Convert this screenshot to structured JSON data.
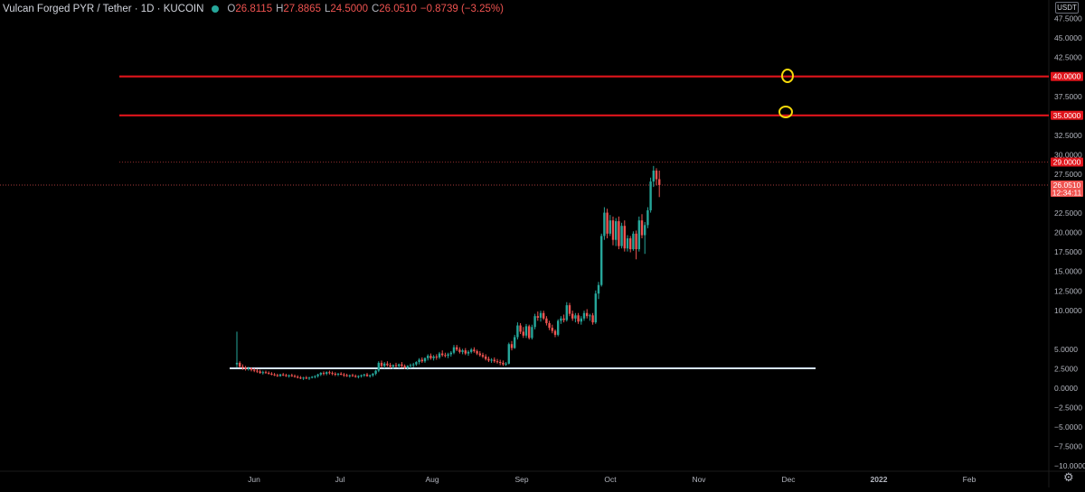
{
  "header": {
    "symbol": "Vulcan Forged PYR / Tether · 1D · KUCOIN",
    "ohlc": [
      {
        "label": "O",
        "value": "26.8115"
      },
      {
        "label": "H",
        "value": "27.8865"
      },
      {
        "label": "L",
        "value": "24.5000"
      },
      {
        "label": "C",
        "value": "26.0510"
      },
      {
        "label": "",
        "value": "−0.8739 (−3.25%)"
      }
    ]
  },
  "currency": "USDT",
  "settings_icon": "gear-icon",
  "colors": {
    "background": "#000000",
    "up": "#26a69a",
    "down": "#ef5350",
    "resistance": "#e0141b",
    "support": "#d6e4ff",
    "circle": "#f5d90a",
    "axis_text": "#b2b5be"
  },
  "price_axis": {
    "ticks": [
      "47.5000",
      "45.0000",
      "42.5000",
      "40.0000",
      "37.5000",
      "35.0000",
      "32.5000",
      "30.0000",
      "27.5000",
      "25.0000",
      "22.5000",
      "20.0000",
      "17.5000",
      "15.0000",
      "12.5000",
      "10.0000",
      "5.0000",
      "2.5000",
      "0.0000",
      "−2.5000",
      "−5.0000",
      "−7.5000",
      "−10.0000"
    ],
    "tick_values": [
      47.5,
      45,
      42.5,
      40,
      37.5,
      35,
      32.5,
      30,
      27.5,
      25,
      22.5,
      20,
      17.5,
      15,
      12.5,
      10,
      5,
      2.5,
      0,
      -2.5,
      -5,
      -7.5,
      -10
    ]
  },
  "price_labels": [
    {
      "text": "40.0000",
      "value": 40,
      "color": "#e0141b"
    },
    {
      "text": "35.0000",
      "value": 35,
      "color": "#e0141b"
    },
    {
      "text": "29.0000",
      "value": 29,
      "color": "#e0141b"
    },
    {
      "text": "26.0510",
      "value": 26.051,
      "color": "#ef5350",
      "sub": "12:34:11"
    }
  ],
  "time_axis": {
    "labels": [
      "Jun",
      "Jul",
      "Aug",
      "Sep",
      "Oct",
      "Nov",
      "Dec",
      "2022",
      "Feb"
    ],
    "bold": [
      "2022"
    ]
  },
  "drawings": {
    "resistance_levels": [
      40,
      35
    ],
    "dotted_level": 29,
    "last_price": 26.051,
    "support_level": 2.5
  },
  "chart_data": {
    "type": "candlestick",
    "start_date": "2021-05-26",
    "candles": [
      [
        3.0,
        7.2,
        2.6,
        3.2
      ],
      [
        3.2,
        3.4,
        2.6,
        2.7
      ],
      [
        2.7,
        3.0,
        2.3,
        2.6
      ],
      [
        2.6,
        2.8,
        2.2,
        2.4
      ],
      [
        2.4,
        2.7,
        2.2,
        2.5
      ],
      [
        2.5,
        2.6,
        2.1,
        2.3
      ],
      [
        2.3,
        2.5,
        2.0,
        2.2
      ],
      [
        2.2,
        2.4,
        1.9,
        2.1
      ],
      [
        2.1,
        2.3,
        1.8,
        1.9
      ],
      [
        1.9,
        2.2,
        1.7,
        2.0
      ],
      [
        2.0,
        2.2,
        1.8,
        1.9
      ],
      [
        1.9,
        2.1,
        1.7,
        1.8
      ],
      [
        1.8,
        2.0,
        1.6,
        1.7
      ],
      [
        1.7,
        1.9,
        1.5,
        1.6
      ],
      [
        1.6,
        1.8,
        1.4,
        1.5
      ],
      [
        1.5,
        1.8,
        1.4,
        1.7
      ],
      [
        1.7,
        1.9,
        1.5,
        1.6
      ],
      [
        1.6,
        1.8,
        1.4,
        1.5
      ],
      [
        1.5,
        1.7,
        1.3,
        1.6
      ],
      [
        1.6,
        1.8,
        1.4,
        1.5
      ],
      [
        1.5,
        1.7,
        1.3,
        1.4
      ],
      [
        1.4,
        1.6,
        1.2,
        1.3
      ],
      [
        1.3,
        1.5,
        1.1,
        1.2
      ],
      [
        1.2,
        1.4,
        1.0,
        1.3
      ],
      [
        1.3,
        1.5,
        1.1,
        1.2
      ],
      [
        1.2,
        1.4,
        1.0,
        1.3
      ],
      [
        1.3,
        1.5,
        1.2,
        1.4
      ],
      [
        1.4,
        1.6,
        1.2,
        1.5
      ],
      [
        1.5,
        1.8,
        1.3,
        1.7
      ],
      [
        1.7,
        2.0,
        1.5,
        1.9
      ],
      [
        1.9,
        2.1,
        1.6,
        1.8
      ],
      [
        1.8,
        2.1,
        1.6,
        2.0
      ],
      [
        2.0,
        2.2,
        1.7,
        1.9
      ],
      [
        1.9,
        2.1,
        1.6,
        1.8
      ],
      [
        1.8,
        2.0,
        1.5,
        1.7
      ],
      [
        1.7,
        1.9,
        1.5,
        1.8
      ],
      [
        1.8,
        2.0,
        1.6,
        1.7
      ],
      [
        1.7,
        1.9,
        1.4,
        1.6
      ],
      [
        1.6,
        1.8,
        1.4,
        1.5
      ],
      [
        1.5,
        1.7,
        1.3,
        1.6
      ],
      [
        1.6,
        1.8,
        1.4,
        1.5
      ],
      [
        1.5,
        1.7,
        1.3,
        1.4
      ],
      [
        1.4,
        1.6,
        1.2,
        1.5
      ],
      [
        1.5,
        1.7,
        1.3,
        1.6
      ],
      [
        1.6,
        1.8,
        1.4,
        1.7
      ],
      [
        1.7,
        1.9,
        1.4,
        1.5
      ],
      [
        1.5,
        1.7,
        1.3,
        1.6
      ],
      [
        1.6,
        1.9,
        1.4,
        1.8
      ],
      [
        1.8,
        2.3,
        1.6,
        2.2
      ],
      [
        2.2,
        3.4,
        2.0,
        3.2
      ],
      [
        3.2,
        3.5,
        2.6,
        2.8
      ],
      [
        2.8,
        3.3,
        2.5,
        3.1
      ],
      [
        3.1,
        3.4,
        2.7,
        2.9
      ],
      [
        2.9,
        3.2,
        2.5,
        2.7
      ],
      [
        2.7,
        3.0,
        2.4,
        2.9
      ],
      [
        2.9,
        3.2,
        2.6,
        2.8
      ],
      [
        2.8,
        3.1,
        2.5,
        3.0
      ],
      [
        3.0,
        3.3,
        2.6,
        2.8
      ],
      [
        2.8,
        3.0,
        2.4,
        2.6
      ],
      [
        2.6,
        2.9,
        2.3,
        2.8
      ],
      [
        2.8,
        3.1,
        2.5,
        2.9
      ],
      [
        2.9,
        3.2,
        2.6,
        3.0
      ],
      [
        3.0,
        3.4,
        2.8,
        3.3
      ],
      [
        3.3,
        3.8,
        3.0,
        3.6
      ],
      [
        3.6,
        3.9,
        3.2,
        3.4
      ],
      [
        3.4,
        3.9,
        3.2,
        3.8
      ],
      [
        3.8,
        4.3,
        3.5,
        4.1
      ],
      [
        4.1,
        4.4,
        3.6,
        3.8
      ],
      [
        3.8,
        4.2,
        3.5,
        4.0
      ],
      [
        4.0,
        4.3,
        3.6,
        3.9
      ],
      [
        3.9,
        4.6,
        3.7,
        4.4
      ],
      [
        4.4,
        4.8,
        4.0,
        4.2
      ],
      [
        4.2,
        4.5,
        3.9,
        4.1
      ],
      [
        4.1,
        4.5,
        3.8,
        4.3
      ],
      [
        4.3,
        4.7,
        4.0,
        4.5
      ],
      [
        4.5,
        5.5,
        4.3,
        5.2
      ],
      [
        5.2,
        5.5,
        4.7,
        4.9
      ],
      [
        4.9,
        5.2,
        4.4,
        4.6
      ],
      [
        4.6,
        5.0,
        4.3,
        4.8
      ],
      [
        4.8,
        5.1,
        4.2,
        4.4
      ],
      [
        4.4,
        4.8,
        4.1,
        4.6
      ],
      [
        4.6,
        5.1,
        4.4,
        4.9
      ],
      [
        4.9,
        5.2,
        4.5,
        4.7
      ],
      [
        4.7,
        4.9,
        4.2,
        4.4
      ],
      [
        4.4,
        4.7,
        4.0,
        4.2
      ],
      [
        4.2,
        4.5,
        3.8,
        4.0
      ],
      [
        4.0,
        4.3,
        3.5,
        3.7
      ],
      [
        3.7,
        4.0,
        3.3,
        3.5
      ],
      [
        3.5,
        3.8,
        3.2,
        3.6
      ],
      [
        3.6,
        3.9,
        3.2,
        3.4
      ],
      [
        3.4,
        3.7,
        3.1,
        3.3
      ],
      [
        3.3,
        3.6,
        2.9,
        3.2
      ],
      [
        3.2,
        3.5,
        2.8,
        3.0
      ],
      [
        3.0,
        3.3,
        2.8,
        3.1
      ],
      [
        3.1,
        5.8,
        3.0,
        5.6
      ],
      [
        5.6,
        6.0,
        4.8,
        5.1
      ],
      [
        5.1,
        6.8,
        5.0,
        6.5
      ],
      [
        6.5,
        8.4,
        6.2,
        8.0
      ],
      [
        8.0,
        8.3,
        6.9,
        7.2
      ],
      [
        7.2,
        7.8,
        6.4,
        6.7
      ],
      [
        6.7,
        8.2,
        6.4,
        7.9
      ],
      [
        7.9,
        8.1,
        6.2,
        6.4
      ],
      [
        6.4,
        8.1,
        6.2,
        7.8
      ],
      [
        7.8,
        9.5,
        7.5,
        9.2
      ],
      [
        9.2,
        9.8,
        8.6,
        9.0
      ],
      [
        9.0,
        9.9,
        8.5,
        9.6
      ],
      [
        9.6,
        9.9,
        8.7,
        8.9
      ],
      [
        8.9,
        9.2,
        8.0,
        8.3
      ],
      [
        8.3,
        8.6,
        7.4,
        7.7
      ],
      [
        7.7,
        8.1,
        7.0,
        7.3
      ],
      [
        7.3,
        7.5,
        6.5,
        6.8
      ],
      [
        6.8,
        8.8,
        6.6,
        8.6
      ],
      [
        8.6,
        9.2,
        8.2,
        8.9
      ],
      [
        8.9,
        9.4,
        8.4,
        8.7
      ],
      [
        8.7,
        11.0,
        8.5,
        10.6
      ],
      [
        10.6,
        10.9,
        9.2,
        9.5
      ],
      [
        9.5,
        9.9,
        8.6,
        8.9
      ],
      [
        8.9,
        9.6,
        8.4,
        9.3
      ],
      [
        9.3,
        9.6,
        8.2,
        8.5
      ],
      [
        8.5,
        9.2,
        8.1,
        8.9
      ],
      [
        8.9,
        9.9,
        8.6,
        9.6
      ],
      [
        9.6,
        10.1,
        8.9,
        9.2
      ],
      [
        9.2,
        9.5,
        8.6,
        9.3
      ],
      [
        9.3,
        9.6,
        8.1,
        8.4
      ],
      [
        8.4,
        12.5,
        8.2,
        12.1
      ],
      [
        12.1,
        13.6,
        11.4,
        13.2
      ],
      [
        13.2,
        19.8,
        13.0,
        19.5
      ],
      [
        19.5,
        23.2,
        19.0,
        22.5
      ],
      [
        22.5,
        23.0,
        19.2,
        19.8
      ],
      [
        19.8,
        22.2,
        19.5,
        21.5
      ],
      [
        21.5,
        22.0,
        18.3,
        19.0
      ],
      [
        19.0,
        21.8,
        18.2,
        21.4
      ],
      [
        21.4,
        22.0,
        17.8,
        18.2
      ],
      [
        18.2,
        21.2,
        17.9,
        20.8
      ],
      [
        20.8,
        21.5,
        17.5,
        17.9
      ],
      [
        17.9,
        19.6,
        17.5,
        19.2
      ],
      [
        19.2,
        19.5,
        17.4,
        17.8
      ],
      [
        17.8,
        20.1,
        17.6,
        19.8
      ],
      [
        19.8,
        20.2,
        16.5,
        17.8
      ],
      [
        17.8,
        22.0,
        17.5,
        21.5
      ],
      [
        21.5,
        22.3,
        19.2,
        19.6
      ],
      [
        19.6,
        21.3,
        17.2,
        20.9
      ],
      [
        20.9,
        23.2,
        20.5,
        22.8
      ],
      [
        22.8,
        27.0,
        22.5,
        26.5
      ],
      [
        26.5,
        28.5,
        25.8,
        27.9
      ],
      [
        27.9,
        28.2,
        26.0,
        26.8
      ],
      [
        26.8,
        27.9,
        24.5,
        26.05
      ]
    ]
  }
}
